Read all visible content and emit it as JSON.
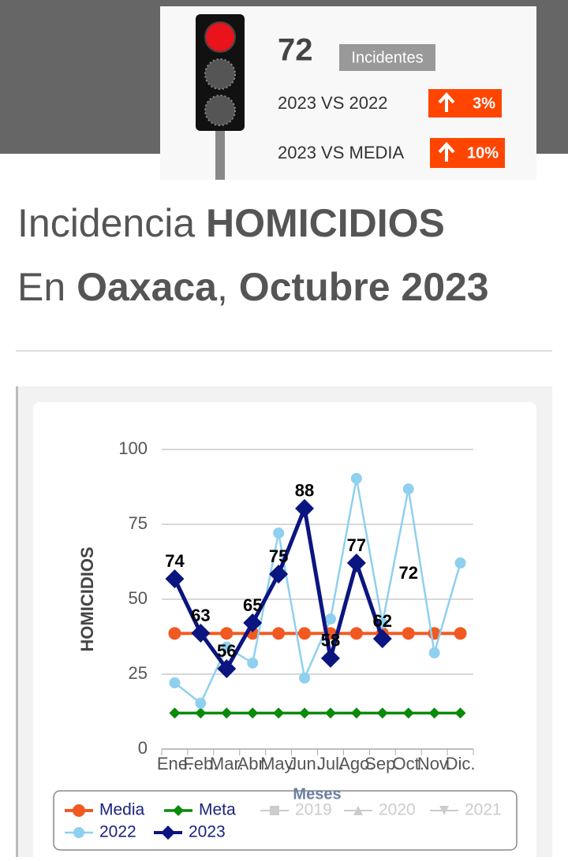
{
  "header": {
    "count": 72,
    "badge": "Incidentes",
    "comparisons": [
      {
        "label": "2023 VS 2022",
        "change": "3%"
      },
      {
        "label": "2023 VS MEDIA",
        "change": "10%"
      }
    ]
  },
  "title_lines": [
    [
      {
        "text": "Incidencia ",
        "bold": false
      },
      {
        "text": "HOMICIDIOS",
        "bold": true
      }
    ],
    [
      {
        "text": "En ",
        "bold": false
      },
      {
        "text": "Oaxaca",
        "bold": true
      },
      {
        "text": ", ",
        "bold": false
      },
      {
        "text": "Octubre 2023",
        "bold": true
      }
    ]
  ],
  "chart_data": {
    "type": "line",
    "categories": [
      "Ene.",
      "Feb.",
      "Mar.",
      "Abr.",
      "May.",
      "Jun.",
      "Jul.",
      "Ago.",
      "Sep.",
      "Oct.",
      "Nov.",
      "Dic."
    ],
    "ylim": [
      0,
      100
    ],
    "yticks": [
      0,
      25,
      50,
      75,
      100
    ],
    "grid": true,
    "y_label": "HOMICIDIOS",
    "x_label": "Meses",
    "series": [
      {
        "name": "Media",
        "color": "#f05a22",
        "marker": "circle",
        "values": [
          38.6,
          38.6,
          38.6,
          38.6,
          38.6,
          38.6,
          38.6,
          38.6,
          38.6,
          38.6,
          38.6,
          38.6
        ]
      },
      {
        "name": "Meta",
        "color": "#0a8a0a",
        "marker": "diamond",
        "values": [
          12,
          12,
          12,
          12,
          12,
          12,
          12,
          12,
          12,
          12,
          12,
          12
        ]
      },
      {
        "name": "2019",
        "color": "#cccccc",
        "marker": "square",
        "values": [
          null,
          null,
          null,
          null,
          null,
          null,
          null,
          null,
          null,
          null,
          null,
          null
        ]
      },
      {
        "name": "2020",
        "color": "#cccccc",
        "marker": "triangle",
        "values": [
          null,
          null,
          null,
          null,
          null,
          null,
          null,
          null,
          null,
          null,
          null,
          null
        ]
      },
      {
        "name": "2021",
        "color": "#cccccc",
        "marker": "triangle-down",
        "values": [
          null,
          null,
          null,
          null,
          null,
          null,
          null,
          null,
          null,
          null,
          null,
          null
        ]
      },
      {
        "name": "2022",
        "color": "#8fd0ef",
        "marker": "circle",
        "values": [
          22.1,
          15.3,
          34,
          28.7,
          72.1,
          23.7,
          43.4,
          90.3,
          42,
          86.8,
          32.1,
          62.1
        ]
      },
      {
        "name": "2023",
        "color": "#0b1580",
        "marker": "diamond",
        "values": [
          56.8,
          38.7,
          26.8,
          42.1,
          58.4,
          80.3,
          30.3,
          62.1,
          36.8,
          null,
          null,
          null
        ]
      }
    ],
    "annotations": [
      "74",
      "63",
      "56",
      "65",
      "75",
      "88",
      "58",
      "77",
      "62",
      "72",
      null,
      null
    ]
  }
}
